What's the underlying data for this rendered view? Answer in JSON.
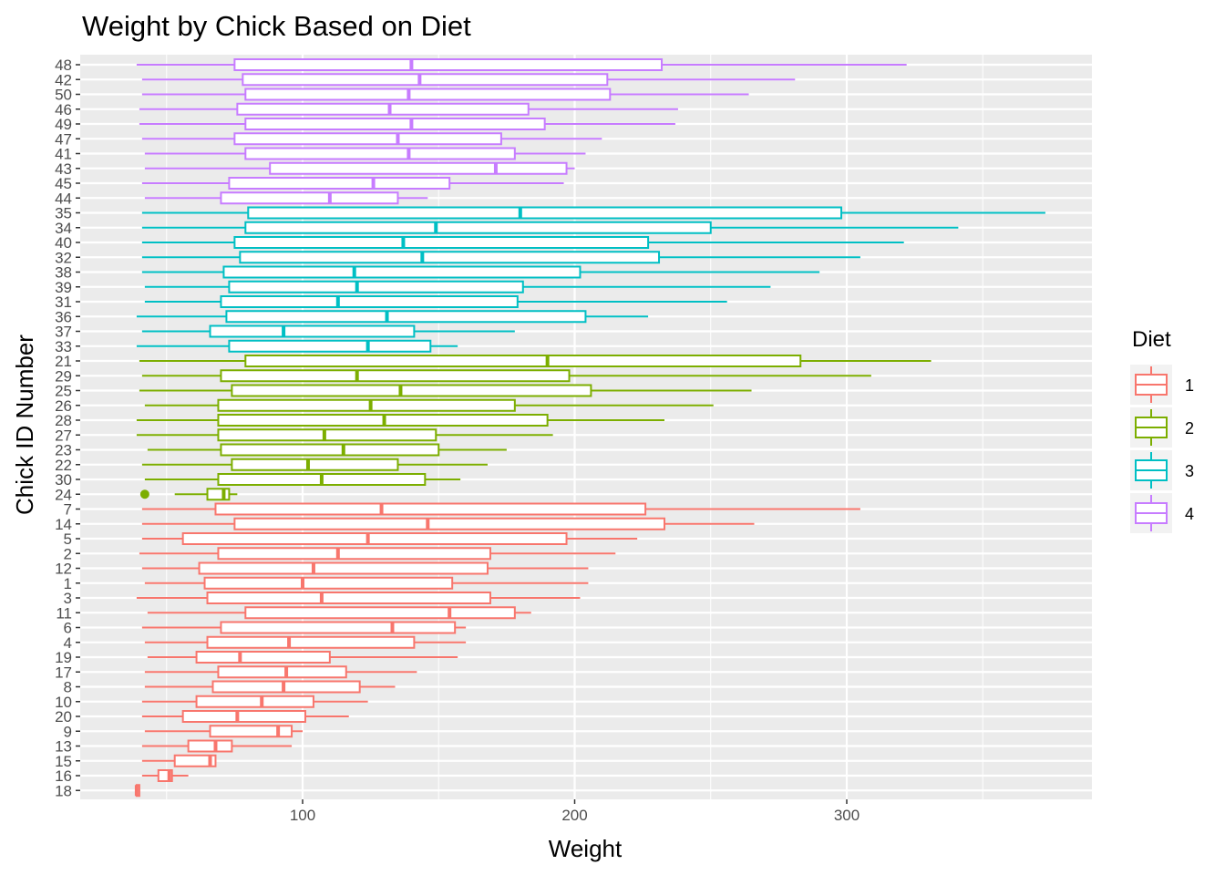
{
  "chart_data": {
    "type": "boxplot",
    "orientation": "horizontal",
    "title": "Weight by Chick Based on Diet",
    "xlabel": "Weight",
    "ylabel": "Chick ID Number",
    "xlim": [
      19,
      390
    ],
    "xticks": [
      100,
      200,
      300
    ],
    "grid": true,
    "legend": {
      "title": "Diet",
      "position": "right",
      "entries": [
        "1",
        "2",
        "3",
        "4"
      ]
    },
    "colors": {
      "1": "#F8766D",
      "2": "#7CAE00",
      "3": "#00BFC4",
      "4": "#C77CFF"
    },
    "chicks": [
      {
        "id": "48",
        "diet": "4",
        "min": 39,
        "q1": 75,
        "median": 140,
        "q3": 232,
        "max": 322
      },
      {
        "id": "42",
        "diet": "4",
        "min": 41,
        "q1": 78,
        "median": 143,
        "q3": 212,
        "max": 281
      },
      {
        "id": "50",
        "diet": "4",
        "min": 41,
        "q1": 79,
        "median": 139,
        "q3": 213,
        "max": 264
      },
      {
        "id": "46",
        "diet": "4",
        "min": 40,
        "q1": 76,
        "median": 132,
        "q3": 183,
        "max": 238
      },
      {
        "id": "49",
        "diet": "4",
        "min": 40,
        "q1": 79,
        "median": 140,
        "q3": 189,
        "max": 237
      },
      {
        "id": "47",
        "diet": "4",
        "min": 41,
        "q1": 75,
        "median": 135,
        "q3": 173,
        "max": 210
      },
      {
        "id": "41",
        "diet": "4",
        "min": 42,
        "q1": 79,
        "median": 139,
        "q3": 178,
        "max": 204
      },
      {
        "id": "43",
        "diet": "4",
        "min": 42,
        "q1": 88,
        "median": 171,
        "q3": 197,
        "max": 200
      },
      {
        "id": "45",
        "diet": "4",
        "min": 41,
        "q1": 73,
        "median": 126,
        "q3": 154,
        "max": 196
      },
      {
        "id": "44",
        "diet": "4",
        "min": 42,
        "q1": 70,
        "median": 110,
        "q3": 135,
        "max": 146
      },
      {
        "id": "35",
        "diet": "3",
        "min": 41,
        "q1": 80,
        "median": 180,
        "q3": 298,
        "max": 373
      },
      {
        "id": "34",
        "diet": "3",
        "min": 41,
        "q1": 79,
        "median": 149,
        "q3": 250,
        "max": 341
      },
      {
        "id": "40",
        "diet": "3",
        "min": 41,
        "q1": 75,
        "median": 137,
        "q3": 227,
        "max": 321
      },
      {
        "id": "32",
        "diet": "3",
        "min": 41,
        "q1": 77,
        "median": 144,
        "q3": 231,
        "max": 305
      },
      {
        "id": "38",
        "diet": "3",
        "min": 41,
        "q1": 71,
        "median": 119,
        "q3": 202,
        "max": 290
      },
      {
        "id": "39",
        "diet": "3",
        "min": 42,
        "q1": 73,
        "median": 120,
        "q3": 181,
        "max": 272
      },
      {
        "id": "31",
        "diet": "3",
        "min": 42,
        "q1": 70,
        "median": 113,
        "q3": 179,
        "max": 256
      },
      {
        "id": "36",
        "diet": "3",
        "min": 39,
        "q1": 72,
        "median": 131,
        "q3": 204,
        "max": 227
      },
      {
        "id": "37",
        "diet": "3",
        "min": 41,
        "q1": 66,
        "median": 93,
        "q3": 141,
        "max": 178
      },
      {
        "id": "33",
        "diet": "3",
        "min": 39,
        "q1": 73,
        "median": 124,
        "q3": 147,
        "max": 157
      },
      {
        "id": "21",
        "diet": "2",
        "min": 40,
        "q1": 79,
        "median": 190,
        "q3": 283,
        "max": 331
      },
      {
        "id": "29",
        "diet": "2",
        "min": 41,
        "q1": 70,
        "median": 120,
        "q3": 198,
        "max": 309
      },
      {
        "id": "25",
        "diet": "2",
        "min": 40,
        "q1": 74,
        "median": 136,
        "q3": 206,
        "max": 265
      },
      {
        "id": "26",
        "diet": "2",
        "min": 42,
        "q1": 69,
        "median": 125,
        "q3": 178,
        "max": 251
      },
      {
        "id": "28",
        "diet": "2",
        "min": 39,
        "q1": 69,
        "median": 130,
        "q3": 190,
        "max": 233
      },
      {
        "id": "27",
        "diet": "2",
        "min": 39,
        "q1": 69,
        "median": 108,
        "q3": 149,
        "max": 192
      },
      {
        "id": "23",
        "diet": "2",
        "min": 43,
        "q1": 70,
        "median": 115,
        "q3": 150,
        "max": 175
      },
      {
        "id": "22",
        "diet": "2",
        "min": 41,
        "q1": 74,
        "median": 102,
        "q3": 135,
        "max": 168
      },
      {
        "id": "30",
        "diet": "2",
        "min": 42,
        "q1": 69,
        "median": 107,
        "q3": 145,
        "max": 158
      },
      {
        "id": "24",
        "diet": "2",
        "min": 53,
        "q1": 65,
        "median": 71,
        "q3": 73,
        "max": 76,
        "outliers": [
          42
        ]
      },
      {
        "id": "7",
        "diet": "1",
        "min": 41,
        "q1": 68,
        "median": 129,
        "q3": 226,
        "max": 305
      },
      {
        "id": "14",
        "diet": "1",
        "min": 41,
        "q1": 75,
        "median": 146,
        "q3": 233,
        "max": 266
      },
      {
        "id": "5",
        "diet": "1",
        "min": 41,
        "q1": 56,
        "median": 124,
        "q3": 197,
        "max": 223
      },
      {
        "id": "2",
        "diet": "1",
        "min": 40,
        "q1": 69,
        "median": 113,
        "q3": 169,
        "max": 215
      },
      {
        "id": "12",
        "diet": "1",
        "min": 41,
        "q1": 62,
        "median": 104,
        "q3": 168,
        "max": 205
      },
      {
        "id": "1",
        "diet": "1",
        "min": 42,
        "q1": 64,
        "median": 100,
        "q3": 155,
        "max": 205
      },
      {
        "id": "3",
        "diet": "1",
        "min": 39,
        "q1": 65,
        "median": 107,
        "q3": 169,
        "max": 202
      },
      {
        "id": "11",
        "diet": "1",
        "min": 43,
        "q1": 79,
        "median": 154,
        "q3": 178,
        "max": 184
      },
      {
        "id": "6",
        "diet": "1",
        "min": 41,
        "q1": 70,
        "median": 133,
        "q3": 156,
        "max": 160
      },
      {
        "id": "4",
        "diet": "1",
        "min": 42,
        "q1": 65,
        "median": 95,
        "q3": 141,
        "max": 160
      },
      {
        "id": "19",
        "diet": "1",
        "min": 43,
        "q1": 61,
        "median": 77,
        "q3": 110,
        "max": 157
      },
      {
        "id": "17",
        "diet": "1",
        "min": 42,
        "q1": 69,
        "median": 94,
        "q3": 116,
        "max": 142
      },
      {
        "id": "8",
        "diet": "1",
        "min": 42,
        "q1": 67,
        "median": 93,
        "q3": 121,
        "max": 134
      },
      {
        "id": "10",
        "diet": "1",
        "min": 41,
        "q1": 61,
        "median": 85,
        "q3": 104,
        "max": 124
      },
      {
        "id": "20",
        "diet": "1",
        "min": 41,
        "q1": 56,
        "median": 76,
        "q3": 101,
        "max": 117
      },
      {
        "id": "9",
        "diet": "1",
        "min": 42,
        "q1": 66,
        "median": 91,
        "q3": 96,
        "max": 100
      },
      {
        "id": "13",
        "diet": "1",
        "min": 41,
        "q1": 58,
        "median": 68,
        "q3": 74,
        "max": 96
      },
      {
        "id": "15",
        "diet": "1",
        "min": 41,
        "q1": 53,
        "median": 66,
        "q3": 68,
        "max": 68
      },
      {
        "id": "16",
        "diet": "1",
        "min": 41,
        "q1": 47,
        "median": 51,
        "q3": 52,
        "max": 58
      },
      {
        "id": "18",
        "diet": "1",
        "min": 39,
        "q1": 39,
        "median": 39,
        "q3": 40,
        "max": 40
      }
    ]
  }
}
